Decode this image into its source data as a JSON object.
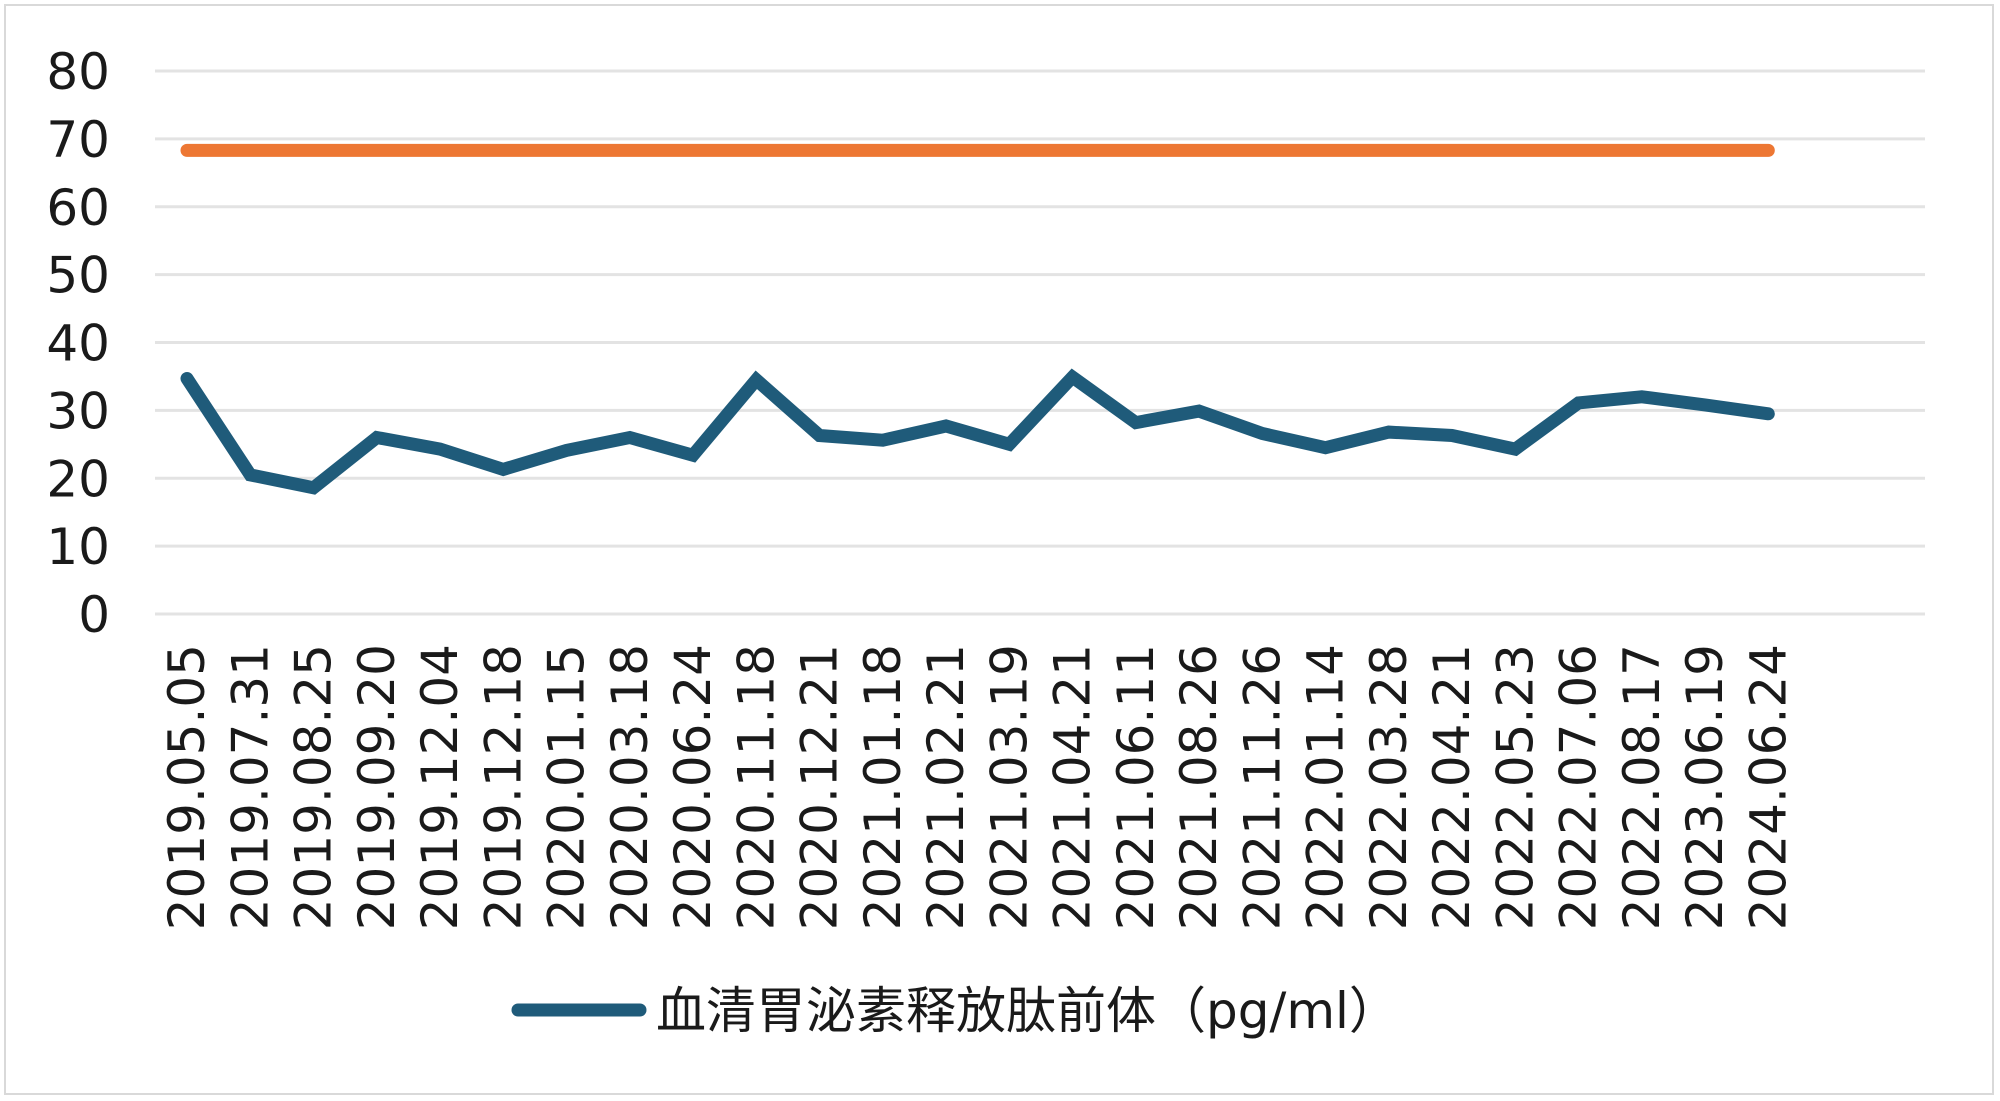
{
  "chart_data": {
    "type": "line",
    "title": "",
    "xlabel": "",
    "ylabel": "",
    "ylim": [
      0,
      80
    ],
    "yticks": [
      0,
      10,
      20,
      30,
      40,
      50,
      60,
      70,
      80
    ],
    "grid": true,
    "legend_position": "bottom",
    "categories": [
      "2019.05.05",
      "2019.07.31",
      "2019.08.25",
      "2019.09.20",
      "2019.12.04",
      "2019.12.18",
      "2020.01.15",
      "2020.03.18",
      "2020.06.24",
      "2020.11.18",
      "2020.12.21",
      "2021.01.18",
      "2021.02.21",
      "2021.03.19",
      "2021.04.21",
      "2021.06.11",
      "2021.08.26",
      "2021.11.26",
      "2022.01.14",
      "2022.03.28",
      "2022.04.21",
      "2022.05.23",
      "2022.07.06",
      "2022.08.17",
      "2023.06.19",
      "2024.06.24"
    ],
    "series": [
      {
        "name": "血清胃泌素释放肽前体（pg/ml）",
        "color": "#1f5b7a",
        "values": [
          34.7,
          20.5,
          18.6,
          26.0,
          24.3,
          21.3,
          24.1,
          26.0,
          23.4,
          34.5,
          26.3,
          25.6,
          27.7,
          25.0,
          34.9,
          28.2,
          29.9,
          26.6,
          24.5,
          26.8,
          26.3,
          24.3,
          31.1,
          32.0,
          30.8,
          29.5
        ]
      },
      {
        "color": "#ed7733",
        "values": [
          68.3,
          68.3,
          68.3,
          68.3,
          68.3,
          68.3,
          68.3,
          68.3,
          68.3,
          68.3,
          68.3,
          68.3,
          68.3,
          68.3,
          68.3,
          68.3,
          68.3,
          68.3,
          68.3,
          68.3,
          68.3,
          68.3,
          68.3,
          68.3,
          68.3,
          68.3
        ]
      }
    ],
    "gridline_color": "#e3e3e3"
  }
}
